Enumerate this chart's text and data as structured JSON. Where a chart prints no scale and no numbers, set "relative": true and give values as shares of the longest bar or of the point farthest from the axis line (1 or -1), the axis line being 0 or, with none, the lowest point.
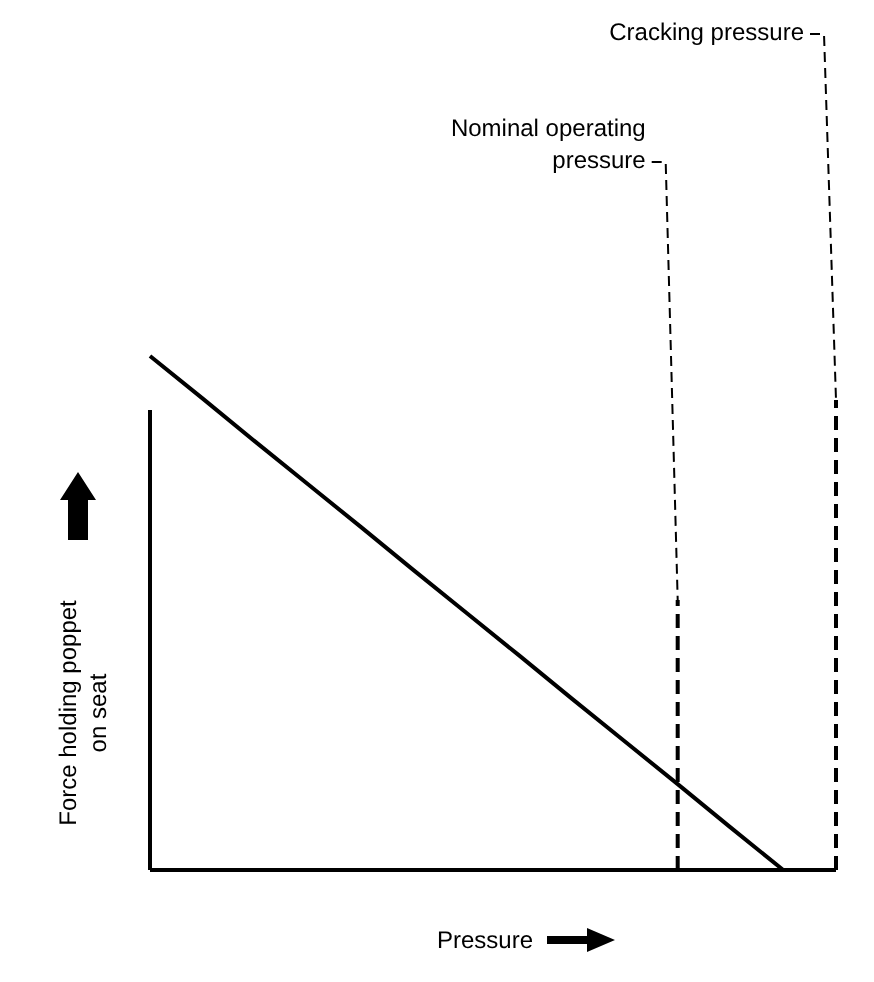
{
  "chart_data": {
    "type": "line",
    "relative": true,
    "xlabel": "Pressure",
    "ylabel": "Force holding poppet on seat",
    "categories": [
      null,
      null,
      null,
      null,
      null,
      null,
      null,
      null,
      null,
      null,
      null,
      null,
      null,
      null
    ],
    "color": "#000000",
    "values": [
      1,
      0.917,
      0.833,
      0.75,
      0.667,
      0.583,
      0.5,
      0.417,
      0.333,
      0.25,
      0.167,
      0.083,
      0,
      null
    ],
    "annotations": [
      "Nominal operating pressure",
      "Cracking pressure"
    ],
    "marker": "none",
    "line_style": "solid"
  }
}
